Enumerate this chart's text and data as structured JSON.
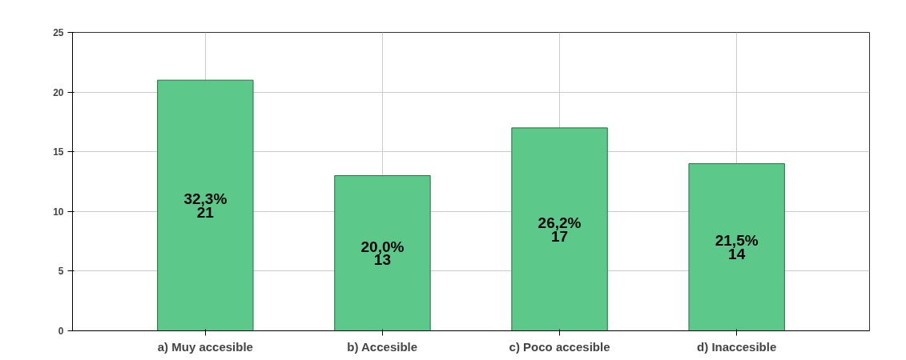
{
  "chart_data": {
    "type": "bar",
    "categories": [
      "a) Muy accesible",
      "b) Accesible",
      "c) Poco accesible",
      "d) Inaccesible"
    ],
    "values": [
      21,
      13,
      17,
      14
    ],
    "value_labels": [
      "32,3%\n21",
      "20,0%\n13",
      "26,2%\n17",
      "21,5%\n14"
    ],
    "color": "#5cc98a",
    "ylim": [
      0,
      25
    ],
    "yticks": [
      0,
      5,
      10,
      15,
      20,
      25
    ],
    "grid": true
  }
}
